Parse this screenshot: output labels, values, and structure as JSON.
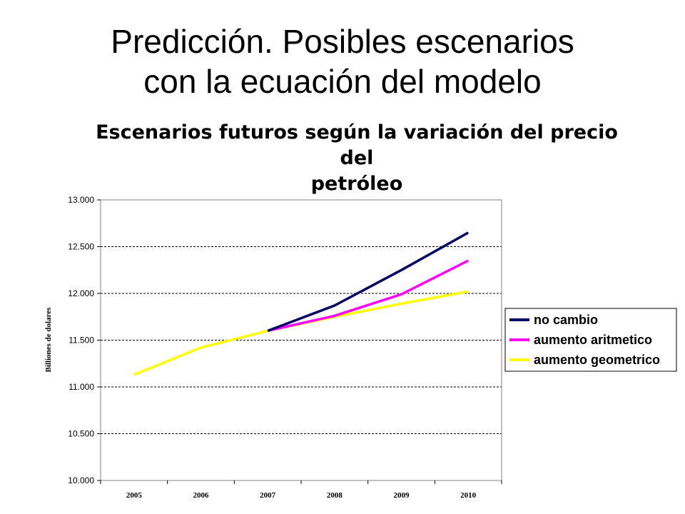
{
  "slide": {
    "title_line1": "Predicción. Posibles escenarios",
    "title_line2": "con la ecuación del modelo"
  },
  "chart_data": {
    "type": "line",
    "title_line1": "Escenarios futuros según la variación del precio del",
    "title_line2": "petróleo",
    "xlabel": "",
    "ylabel": "Billiones de dolares",
    "x": [
      "2005",
      "2006",
      "2007",
      "2008",
      "2009",
      "2010"
    ],
    "ylim": [
      10000,
      13000
    ],
    "yticks": [
      10000,
      10500,
      11000,
      11500,
      12000,
      12500,
      13000
    ],
    "ytick_labels": [
      "10.000",
      "10.500",
      "11.000",
      "11.500",
      "12.000",
      "12.500",
      "13.000"
    ],
    "grid": "horizontal dashed",
    "legend_position": "right",
    "series": [
      {
        "name": "no cambio",
        "color": "#000066",
        "values": [
          null,
          null,
          11600,
          11870,
          12250,
          12650
        ]
      },
      {
        "name": "aumento aritmetico",
        "color": "#ff00ff",
        "values": [
          null,
          null,
          11600,
          11760,
          11990,
          12350
        ]
      },
      {
        "name": "aumento geometrico",
        "color": "#ffff00",
        "values": [
          11130,
          11420,
          11600,
          11750,
          11890,
          12020
        ]
      }
    ]
  }
}
